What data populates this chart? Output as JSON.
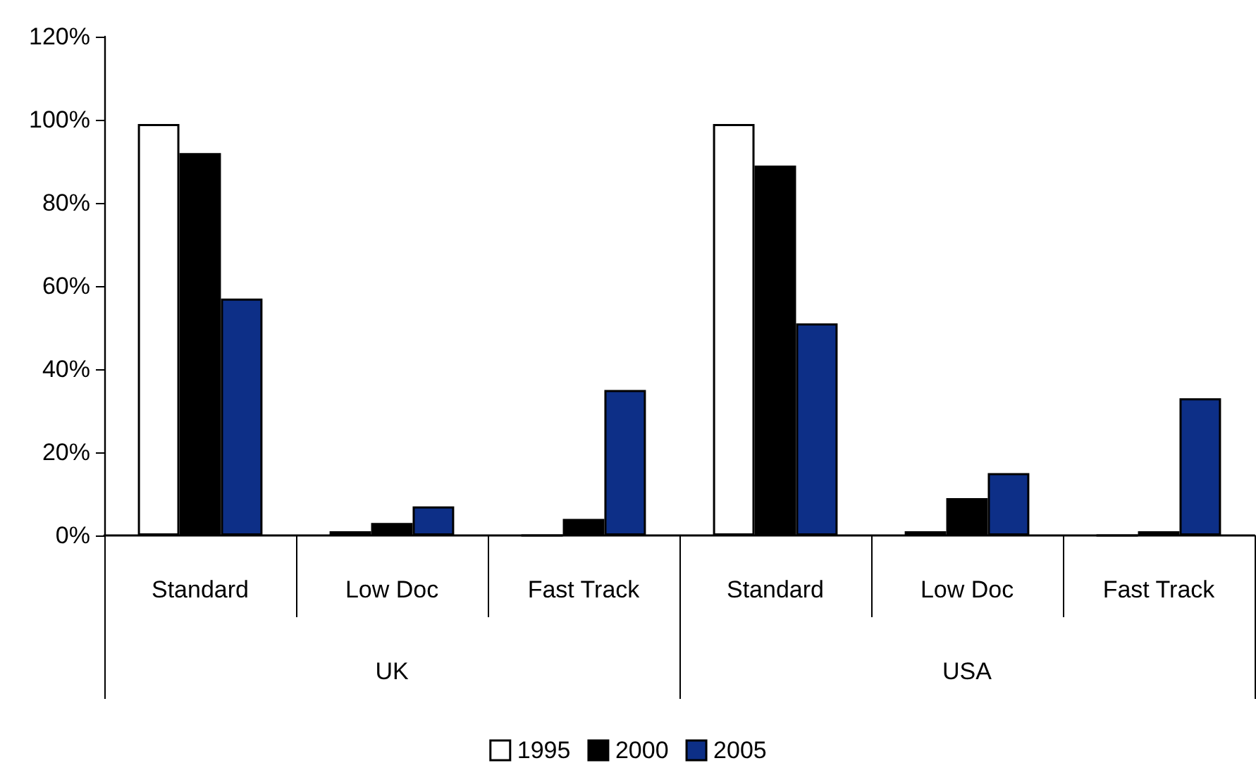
{
  "chart_data": {
    "type": "bar",
    "categories": [
      "Standard",
      "Low Doc",
      "Fast Track",
      "Standard",
      "Low Doc",
      "Fast Track"
    ],
    "series": [
      {
        "name": "1995",
        "color": "#ffffff",
        "values": [
          99,
          1,
          0,
          99,
          1,
          0
        ]
      },
      {
        "name": "2000",
        "color": "#000000",
        "values": [
          92,
          3,
          4,
          89,
          9,
          1
        ]
      },
      {
        "name": "2005",
        "color": "#0d2f87",
        "values": [
          57,
          7,
          35,
          51,
          15,
          33
        ]
      }
    ],
    "annotations": [
      "UK",
      "USA"
    ],
    "ylim": [
      0,
      120
    ],
    "yticks": [
      {
        "value": 0,
        "label": "0%"
      },
      {
        "value": 20,
        "label": "20%"
      },
      {
        "value": 40,
        "label": "40%"
      },
      {
        "value": 60,
        "label": "60%"
      },
      {
        "value": 80,
        "label": "80%"
      },
      {
        "value": 100,
        "label": "100%"
      },
      {
        "value": 120,
        "label": "120%"
      }
    ],
    "grid": false,
    "legend": "bottom"
  }
}
